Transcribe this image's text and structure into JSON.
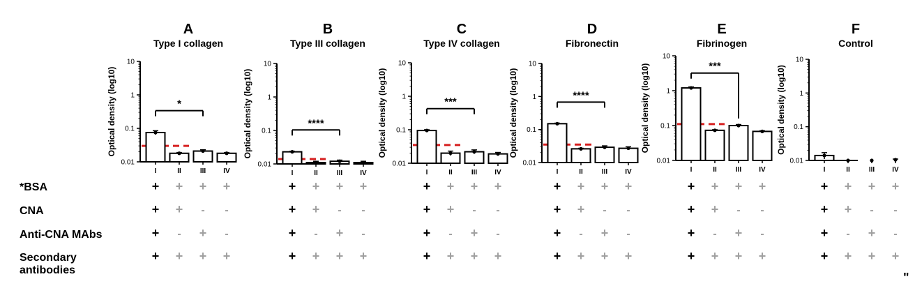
{
  "conditions_table": {
    "rows": [
      {
        "label": "*BSA",
        "cols": [
          "+",
          "+",
          "+",
          "+"
        ]
      },
      {
        "label": "CNA",
        "cols": [
          "+",
          "+",
          "-",
          "-"
        ]
      },
      {
        "label": "Anti-CNA MAbs",
        "cols": [
          "+",
          "-",
          "+",
          "-"
        ]
      },
      {
        "label": "Secondary antibodies",
        "label_lines": [
          "Secondary",
          "antibodies"
        ],
        "cols": [
          "+",
          "+",
          "+",
          "+"
        ]
      }
    ]
  },
  "trailing_mark": "\"",
  "colors": {
    "threshold": "#d62020",
    "bar_fill": "#ffffff",
    "bar_stroke": "#000000",
    "plus_first": "#000000",
    "plus_other": "#a0a0a0"
  },
  "chart_data": [
    {
      "panel": "A",
      "title": "Type I collagen",
      "type": "bar",
      "ylabel": "Optical density (log10)",
      "yscale": "log",
      "ylim": [
        0.01,
        10
      ],
      "ytick_labels": [
        "10",
        "1",
        "0.1",
        "0.01"
      ],
      "categories": [
        "I",
        "II",
        "III",
        "IV"
      ],
      "values": [
        0.075,
        0.018,
        0.021,
        0.018
      ],
      "error": [
        0.01,
        0.001,
        0.002,
        0.001
      ],
      "threshold": 0.03,
      "significance": {
        "from": "I",
        "to": "III",
        "label": "*"
      }
    },
    {
      "panel": "B",
      "title": "Type III collagen",
      "type": "bar",
      "ylabel": "Optical density (log10)",
      "yscale": "log",
      "ylim": [
        0.01,
        10
      ],
      "ytick_labels": [
        "10",
        "1",
        "0.1",
        "0.01"
      ],
      "categories": [
        "I",
        "II",
        "III",
        "IV"
      ],
      "values": [
        0.023,
        0.011,
        0.012,
        0.011
      ],
      "error": [
        0.001,
        0.001,
        0.001,
        0.001
      ],
      "threshold": 0.014,
      "significance": {
        "from": "I",
        "to": "III",
        "label": "****"
      }
    },
    {
      "panel": "C",
      "title": "Type IV collagen",
      "type": "bar",
      "ylabel": "Optical density (log10)",
      "yscale": "log",
      "ylim": [
        0.01,
        10
      ],
      "ytick_labels": [
        "10",
        "1",
        "0.1",
        "0.01"
      ],
      "categories": [
        "I",
        "II",
        "III",
        "IV"
      ],
      "values": [
        0.095,
        0.02,
        0.022,
        0.019
      ],
      "error": [
        0.005,
        0.003,
        0.003,
        0.002
      ],
      "threshold": 0.035,
      "significance": {
        "from": "I",
        "to": "III",
        "label": "***"
      }
    },
    {
      "panel": "D",
      "title": "Fibronectin",
      "type": "bar",
      "ylabel": "Optical density (log10)",
      "yscale": "log",
      "ylim": [
        0.01,
        10
      ],
      "ytick_labels": [
        "10",
        "1",
        "0.1",
        "0.01"
      ],
      "categories": [
        "I",
        "II",
        "III",
        "IV"
      ],
      "values": [
        0.15,
        0.026,
        0.029,
        0.027
      ],
      "error": [
        0.006,
        0.001,
        0.003,
        0.003
      ],
      "threshold": 0.035,
      "significance": {
        "from": "I",
        "to": "III",
        "label": "****"
      }
    },
    {
      "panel": "E",
      "title": "Fibrinogen",
      "type": "bar",
      "ylabel": "Optical density (log10)",
      "yscale": "log",
      "ylim": [
        0.01,
        10
      ],
      "ytick_labels": [
        "10",
        "1",
        "0.1",
        "0.01"
      ],
      "categories": [
        "I",
        "II",
        "III",
        "IV"
      ],
      "values": [
        1.2,
        0.073,
        0.1,
        0.068
      ],
      "error": [
        0.08,
        0.003,
        0.007,
        0.003
      ],
      "threshold": 0.11,
      "significance": {
        "from": "I",
        "to": "III",
        "label": "***"
      }
    },
    {
      "panel": "F",
      "title": "Control",
      "type": "bar",
      "ylabel": "Optical density (log10)",
      "yscale": "log",
      "ylim": [
        0.01,
        10
      ],
      "ytick_labels": [
        "10",
        "1",
        "0.1",
        "0.01"
      ],
      "categories": [
        "I",
        "II",
        "III",
        "IV"
      ],
      "values": [
        0.014,
        0.01,
        0.01,
        0.0105
      ],
      "error": [
        0.003,
        0,
        0,
        0.0005
      ],
      "threshold": null,
      "significance": null
    }
  ]
}
